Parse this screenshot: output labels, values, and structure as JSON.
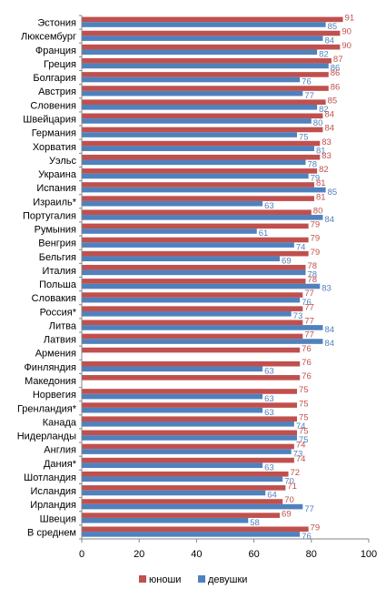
{
  "chart_data": {
    "type": "bar",
    "orientation": "horizontal",
    "categories": [
      "Эстония",
      "Люксембург",
      "Франция",
      "Греция",
      "Болгария",
      "Австрия",
      "Словения",
      "Швейцария",
      "Германия",
      "Хорватия",
      "Уэльс",
      "Украина",
      "Испания",
      "Израиль*",
      "Португалия",
      "Румыния",
      "Венгрия",
      "Бельгия",
      "Италия",
      "Польша",
      "Словакия",
      "Россия*",
      "Литва",
      "Латвия",
      "Армения",
      "Финляндия",
      "Македония",
      "Норвегия",
      "Гренландия*",
      "Канада",
      "Нидерланды",
      "Англия",
      "Дания*",
      "Шотландия",
      "Исландия",
      "Ирландия",
      "Швеция",
      "В среднем"
    ],
    "series": [
      {
        "name": "юноши",
        "color": "#C0504D",
        "values": [
          91,
          90,
          90,
          87,
          86,
          86,
          85,
          84,
          84,
          83,
          83,
          82,
          81,
          81,
          80,
          79,
          79,
          79,
          78,
          78,
          77,
          77,
          77,
          77,
          76,
          76,
          76,
          75,
          75,
          75,
          75,
          74,
          74,
          72,
          71,
          70,
          69,
          79
        ]
      },
      {
        "name": "девушки",
        "color": "#4F81BD",
        "values": [
          85,
          84,
          82,
          86,
          76,
          77,
          82,
          80,
          75,
          81,
          78,
          79,
          85,
          63,
          84,
          61,
          74,
          69,
          78,
          83,
          76,
          73,
          84,
          84,
          null,
          63,
          null,
          63,
          63,
          74,
          75,
          73,
          63,
          70,
          64,
          77,
          58,
          76
        ]
      }
    ],
    "xlim": [
      0,
      100
    ],
    "xticks": [
      0,
      20,
      40,
      60,
      80,
      100
    ],
    "legend_position": "bottom",
    "grid": false
  }
}
